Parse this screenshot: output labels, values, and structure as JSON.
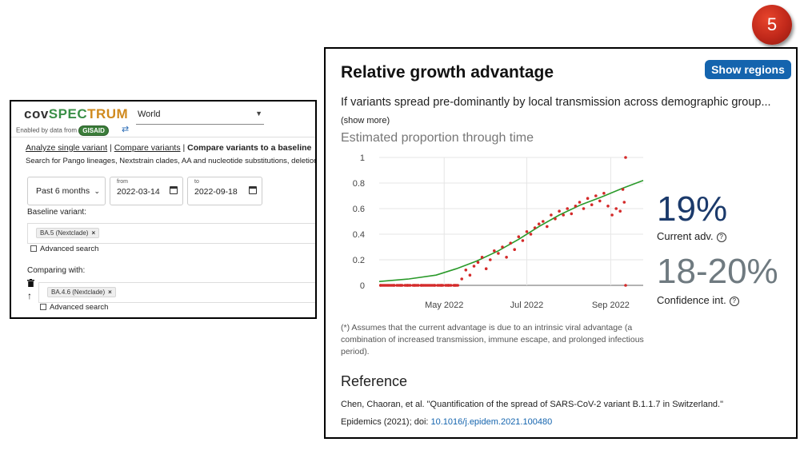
{
  "step_badge": "5",
  "app": {
    "brand_parts": [
      "cov",
      "SPEC",
      "TRUM"
    ],
    "enabled_by": "Enabled by data from",
    "gisaid": "GISAID",
    "swap_icon": "⇄",
    "location": "World"
  },
  "nav": {
    "analyze_single": "Analyze single variant",
    "sep1": " | ",
    "compare_variants": "Compare variants",
    "sep2": " | ",
    "compare_baseline": "Compare variants to a baseline"
  },
  "search_hint": "Search for Pango lineages, Nextstrain clades, AA and nucleotide substitutions, deletions...",
  "date_range": {
    "period": "Past 6 months",
    "from_label": "from",
    "from": "2022-03-14",
    "to_label": "to",
    "to": "2022-09-18"
  },
  "baseline": {
    "label": "Baseline variant:",
    "chip": "BA.5 (Nextclade)",
    "advanced": "Advanced search"
  },
  "comparing": {
    "label": "Comparing with:",
    "chip": "BA.4.6 (Nextclade)",
    "advanced": "Advanced search"
  },
  "panel": {
    "title": "Relative growth advantage",
    "show_regions": "Show regions",
    "description": "If variants spread pre-dominantly by local transmission across demographic group...",
    "show_more": "(show more)",
    "chart_title": "Estimated proportion through time",
    "current_adv_value": "19%",
    "current_adv_label": "Current adv.",
    "ci_value": "18-20%",
    "ci_label": "Confidence int.",
    "help_icon": "?",
    "footnote": "(*) Assumes that the current advantage is due to an intrinsic viral advantage (a combination of increased transmission, immune escape, and prolonged infectious period).",
    "reference_title": "Reference",
    "reference_text": "Chen, Chaoran, et al. \"Quantification of the spread of SARS-CoV-2 variant B.1.1.7 in Switzerland.\"",
    "reference_journal": "Epidemics (2021); doi: ",
    "reference_doi": "10.1016/j.epidem.2021.100480"
  },
  "chart_data": {
    "type": "scatter",
    "title": "Estimated proportion through time",
    "x_axis": {
      "ticks": [
        "May 2022",
        "Jul 2022",
        "Sep 2022"
      ],
      "range": [
        "2022-03-14",
        "2022-09-25"
      ]
    },
    "y_axis": {
      "ticks": [
        "0",
        "0.2",
        "0.4",
        "0.6",
        "0.8",
        "1"
      ],
      "range": [
        0,
        1
      ]
    },
    "grid": true,
    "series": [
      {
        "kind": "fitted-line",
        "color": "#2a9a2a",
        "x": [
          "2022-03-14",
          "2022-04-05",
          "2022-04-25",
          "2022-05-10",
          "2022-05-25",
          "2022-06-10",
          "2022-06-25",
          "2022-07-10",
          "2022-07-25",
          "2022-08-10",
          "2022-08-25",
          "2022-09-10",
          "2022-09-25"
        ],
        "y": [
          0.03,
          0.05,
          0.08,
          0.13,
          0.19,
          0.27,
          0.36,
          0.46,
          0.55,
          0.63,
          0.69,
          0.76,
          0.82
        ]
      },
      {
        "kind": "points",
        "color": "#d42a2a",
        "x": [
          "2022-03-15",
          "2022-03-20",
          "2022-03-25",
          "2022-03-30",
          "2022-04-04",
          "2022-04-09",
          "2022-04-14",
          "2022-04-19",
          "2022-04-24",
          "2022-04-29",
          "2022-05-04",
          "2022-05-09",
          "2022-05-14",
          "2022-05-17",
          "2022-05-20",
          "2022-05-23",
          "2022-05-26",
          "2022-05-29",
          "2022-06-01",
          "2022-06-04",
          "2022-06-07",
          "2022-06-10",
          "2022-06-13",
          "2022-06-16",
          "2022-06-19",
          "2022-06-22",
          "2022-06-25",
          "2022-06-28",
          "2022-07-01",
          "2022-07-04",
          "2022-07-07",
          "2022-07-10",
          "2022-07-13",
          "2022-07-16",
          "2022-07-19",
          "2022-07-22",
          "2022-07-25",
          "2022-07-28",
          "2022-07-31",
          "2022-08-03",
          "2022-08-06",
          "2022-08-09",
          "2022-08-12",
          "2022-08-15",
          "2022-08-18",
          "2022-08-21",
          "2022-08-24",
          "2022-08-27",
          "2022-08-30",
          "2022-09-02",
          "2022-09-05",
          "2022-09-08",
          "2022-09-10",
          "2022-09-11",
          "2022-09-12",
          "2022-09-12"
        ],
        "y": [
          0,
          0,
          0,
          0,
          0,
          0,
          0,
          0,
          0,
          0,
          0,
          0,
          0.05,
          0.12,
          0.08,
          0.15,
          0.18,
          0.22,
          0.13,
          0.2,
          0.27,
          0.25,
          0.3,
          0.22,
          0.33,
          0.28,
          0.38,
          0.35,
          0.42,
          0.4,
          0.45,
          0.48,
          0.5,
          0.46,
          0.55,
          0.52,
          0.58,
          0.55,
          0.6,
          0.56,
          0.62,
          0.65,
          0.6,
          0.68,
          0.63,
          0.7,
          0.66,
          0.72,
          0.62,
          0.55,
          0.6,
          0.58,
          0.75,
          0.65,
          1.0,
          0.0
        ]
      }
    ]
  }
}
